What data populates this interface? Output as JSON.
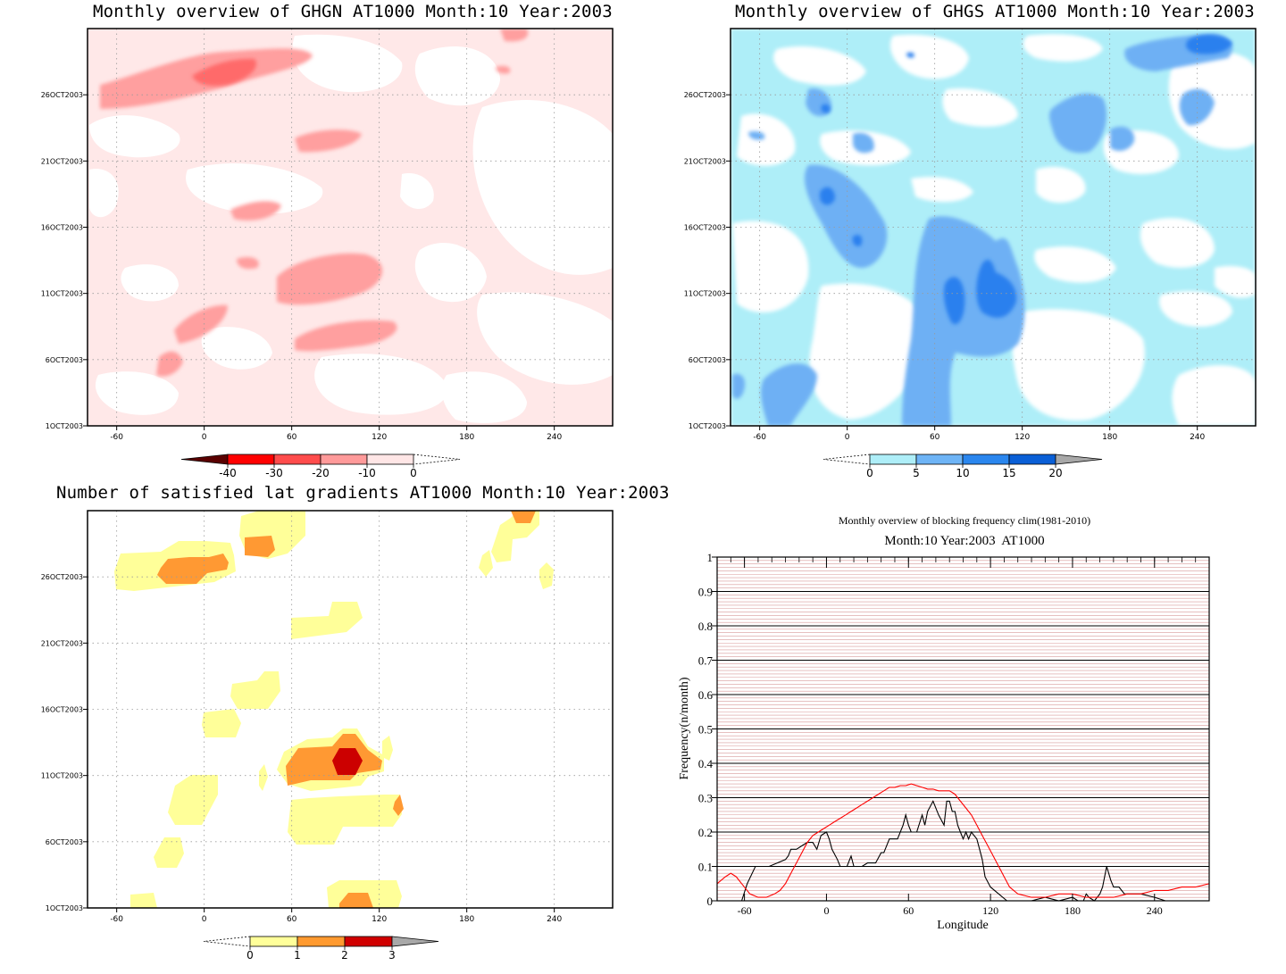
{
  "chart_data": [
    {
      "type": "heatmap",
      "title": "Monthly overview of GHGN AT1000 Month:10 Year:2003",
      "x_ticks": [
        -60,
        0,
        60,
        120,
        180,
        240
      ],
      "y_ticks": [
        "1OCT2003",
        "6OCT2003",
        "11OCT2003",
        "16OCT2003",
        "21OCT2003",
        "26OCT2003"
      ],
      "xlim": [
        -80,
        280
      ],
      "ylim": [
        1,
        31
      ],
      "colorbar": {
        "levels": [
          "-40",
          "-30",
          "-20",
          "-10",
          "0"
        ],
        "colors": [
          "#5a0000",
          "#ff0000",
          "#ff4c4c",
          "#ff9a9a",
          "#ffe6e6"
        ],
        "lower_extend_color": "#5a0000",
        "upper_extend": "open"
      },
      "colors": {
        "background": "#ffe8e8",
        "lvl1": "#ff9f9f",
        "lvl2": "#ff5f5f",
        "lvl3": "#ff2020"
      }
    },
    {
      "type": "heatmap",
      "title": "Monthly overview of GHGS AT1000 Month:10 Year:2003",
      "x_ticks": [
        -60,
        0,
        60,
        120,
        180,
        240
      ],
      "y_ticks": [
        "1OCT2003",
        "6OCT2003",
        "11OCT2003",
        "16OCT2003",
        "21OCT2003",
        "26OCT2003"
      ],
      "xlim": [
        -80,
        280
      ],
      "ylim": [
        1,
        31
      ],
      "colorbar": {
        "levels": [
          "0",
          "5",
          "10",
          "15",
          "20"
        ],
        "colors": [
          "#aeeef8",
          "#6eb4f6",
          "#2a86ee",
          "#0a5fd6"
        ],
        "upper_extend_color": "#a8a8a8",
        "lower_extend": "open"
      },
      "colors": {
        "background": "#ffffff",
        "lvl1": "#aeeef8",
        "lvl2": "#6eb0f4",
        "lvl3": "#2a80ee"
      }
    },
    {
      "type": "heatmap",
      "title": "Number of satisfied lat gradients AT1000 Month:10 Year:2003",
      "x_ticks": [
        -60,
        0,
        60,
        120,
        180,
        240
      ],
      "y_ticks": [
        "1OCT2003",
        "6OCT2003",
        "11OCT2003",
        "16OCT2003",
        "21OCT2003",
        "26OCT2003"
      ],
      "xlim": [
        -80,
        280
      ],
      "ylim": [
        1,
        31
      ],
      "colorbar": {
        "levels": [
          "0",
          "1",
          "2",
          "3"
        ],
        "colors": [
          "#ffff9a",
          "#ff9a30",
          "#d00000"
        ],
        "upper_extend_color": "#a8a8a8",
        "lower_extend": "open"
      },
      "colors": {
        "background": "#ffffff",
        "lvl1": "#ffff99",
        "lvl2": "#ff9933",
        "lvl3": "#cc0000"
      }
    },
    {
      "type": "line",
      "title": "Monthly overview of blocking frequency clim(1981-2010)",
      "subtitle": "Month:10 Year:2003  AT1000",
      "xlabel": "Longitude",
      "ylabel": "Frequency(n/month)",
      "xlim": [
        -80,
        280
      ],
      "ylim": [
        0,
        1
      ],
      "x_ticks": [
        -60,
        0,
        60,
        120,
        180,
        240
      ],
      "y_ticks": [
        "0",
        "0.1",
        "0.2",
        "0.3",
        "0.4",
        "0.5",
        "0.6",
        "0.7",
        "0.8",
        "0.9",
        "1"
      ],
      "grid": true,
      "series": [
        {
          "color": "#000000",
          "x": [
            -80,
            -62,
            -58,
            -52,
            -48,
            -42,
            -30,
            -28,
            -26,
            -22,
            -18,
            -14,
            -10,
            -7,
            -4,
            0,
            2,
            4,
            8,
            10,
            15,
            18,
            20,
            22,
            26,
            30,
            36,
            40,
            42,
            46,
            48,
            52,
            56,
            58,
            60,
            62,
            64,
            66,
            70,
            72,
            74,
            78,
            82,
            86,
            88,
            90,
            92,
            94,
            96,
            98,
            100,
            102,
            104,
            106,
            108,
            110,
            112,
            114,
            116,
            120,
            126,
            132,
            136,
            140,
            150,
            160,
            170,
            180,
            184,
            188,
            190,
            192,
            196,
            200,
            202,
            205,
            208,
            210,
            214,
            218,
            224,
            230,
            240,
            248,
            260,
            272,
            280
          ],
          "y": [
            0,
            0,
            0.05,
            0.1,
            0.1,
            0.1,
            0.12,
            0.13,
            0.15,
            0.15,
            0.16,
            0.17,
            0.17,
            0.15,
            0.19,
            0.2,
            0.18,
            0.15,
            0.12,
            0.1,
            0.1,
            0.13,
            0.1,
            0.1,
            0.1,
            0.11,
            0.11,
            0.14,
            0.14,
            0.18,
            0.18,
            0.18,
            0.22,
            0.25,
            0.22,
            0.2,
            0.2,
            0.2,
            0.25,
            0.22,
            0.26,
            0.29,
            0.25,
            0.22,
            0.29,
            0.29,
            0.26,
            0.26,
            0.22,
            0.2,
            0.18,
            0.2,
            0.18,
            0.2,
            0.19,
            0.18,
            0.15,
            0.12,
            0.07,
            0.04,
            0.02,
            0,
            0,
            0,
            0,
            0.01,
            0,
            0.01,
            0,
            0,
            0.02,
            0.01,
            0,
            0.02,
            0.04,
            0.1,
            0.06,
            0.04,
            0.04,
            0.02,
            0.02,
            0.02,
            0.01,
            0,
            0,
            0,
            0
          ]
        },
        {
          "color": "#ff0000",
          "x": [
            -80,
            -74,
            -70,
            -66,
            -62,
            -56,
            -50,
            -44,
            -38,
            -34,
            -30,
            -26,
            -22,
            -18,
            -14,
            -10,
            -6,
            -2,
            2,
            6,
            10,
            14,
            18,
            22,
            26,
            30,
            34,
            38,
            42,
            46,
            50,
            54,
            58,
            62,
            66,
            70,
            74,
            78,
            82,
            86,
            90,
            94,
            98,
            102,
            106,
            110,
            114,
            118,
            122,
            126,
            130,
            134,
            140,
            150,
            160,
            170,
            180,
            190,
            200,
            210,
            220,
            230,
            240,
            250,
            260,
            270,
            280
          ],
          "y": [
            0.05,
            0.07,
            0.08,
            0.07,
            0.05,
            0.02,
            0.01,
            0.01,
            0.02,
            0.03,
            0.05,
            0.08,
            0.11,
            0.14,
            0.17,
            0.19,
            0.2,
            0.21,
            0.22,
            0.23,
            0.24,
            0.25,
            0.26,
            0.27,
            0.28,
            0.29,
            0.3,
            0.31,
            0.32,
            0.33,
            0.33,
            0.335,
            0.335,
            0.34,
            0.335,
            0.33,
            0.325,
            0.325,
            0.32,
            0.32,
            0.32,
            0.31,
            0.29,
            0.27,
            0.25,
            0.22,
            0.19,
            0.16,
            0.13,
            0.1,
            0.07,
            0.04,
            0.02,
            0.01,
            0.01,
            0.02,
            0.02,
            0.01,
            0.01,
            0.01,
            0.02,
            0.02,
            0.03,
            0.03,
            0.04,
            0.04,
            0.05
          ]
        }
      ]
    }
  ]
}
